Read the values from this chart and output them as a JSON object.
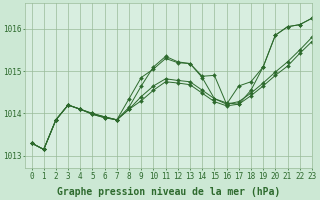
{
  "background_color": "#cce8d4",
  "plot_bg_color": "#d8eee0",
  "grid_color": "#99bb99",
  "line_color": "#2d6a2d",
  "marker_color": "#2d6a2d",
  "xlabel": "Graphe pression niveau de la mer (hPa)",
  "xlabel_fontsize": 7,
  "tick_fontsize": 5.5,
  "xlim": [
    -0.5,
    23
  ],
  "ylim": [
    1012.7,
    1016.6
  ],
  "yticks": [
    1013,
    1014,
    1015,
    1016
  ],
  "xticks": [
    0,
    1,
    2,
    3,
    4,
    5,
    6,
    7,
    8,
    9,
    10,
    11,
    12,
    13,
    14,
    15,
    16,
    17,
    18,
    19,
    20,
    21,
    22,
    23
  ],
  "series": [
    [
      1013.3,
      1013.15,
      1013.85,
      1014.2,
      1014.1,
      1014.0,
      1013.92,
      1013.85,
      1014.35,
      1014.85,
      1015.05,
      1015.3,
      1015.2,
      1015.18,
      1014.85,
      1014.35,
      1014.25,
      1014.22,
      1014.55,
      1015.1,
      1015.85,
      1016.05,
      1016.1,
      1016.25
    ],
    [
      1013.3,
      1013.15,
      1013.85,
      1014.2,
      1014.1,
      1014.0,
      1013.92,
      1013.85,
      1014.15,
      1014.65,
      1015.1,
      1015.35,
      1015.22,
      1015.18,
      1014.88,
      1014.9,
      1014.22,
      1014.65,
      1014.75,
      1015.1,
      1015.85,
      1016.05,
      1016.1,
      1016.25
    ],
    [
      1013.3,
      1013.15,
      1013.85,
      1014.2,
      1014.1,
      1013.98,
      1013.9,
      1013.85,
      1014.1,
      1014.4,
      1014.65,
      1014.82,
      1014.78,
      1014.75,
      1014.55,
      1014.35,
      1014.22,
      1014.28,
      1014.48,
      1014.72,
      1014.98,
      1015.22,
      1015.5,
      1015.8
    ],
    [
      1013.3,
      1013.15,
      1013.85,
      1014.2,
      1014.1,
      1013.98,
      1013.9,
      1013.85,
      1014.1,
      1014.3,
      1014.55,
      1014.75,
      1014.72,
      1014.68,
      1014.48,
      1014.28,
      1014.18,
      1014.22,
      1014.42,
      1014.65,
      1014.9,
      1015.12,
      1015.42,
      1015.7
    ]
  ]
}
